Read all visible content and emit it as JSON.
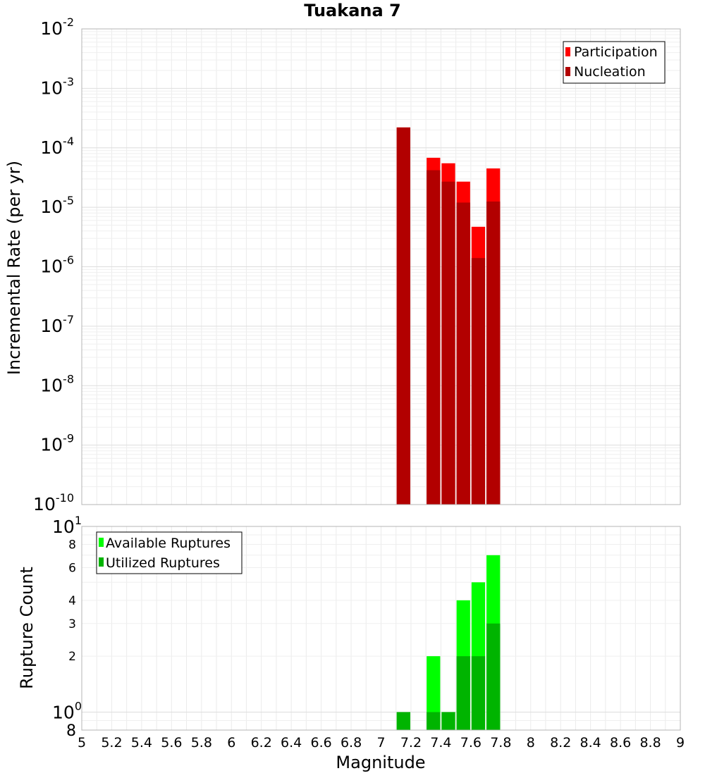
{
  "chart_data": [
    {
      "type": "bar",
      "title": "Tuakana 7",
      "xlabel": "",
      "ylabel": "Incremental Rate (per yr)",
      "xlim": [
        5,
        9
      ],
      "ylim": [
        1e-10,
        0.01
      ],
      "y_scale": "log",
      "grid": true,
      "legend_position": "top-right",
      "bin_width": 0.1,
      "x_ticks": [
        "5",
        "5.2",
        "5.4",
        "5.6",
        "5.8",
        "6",
        "6.2",
        "6.4",
        "6.6",
        "6.8",
        "7",
        "7.2",
        "7.4",
        "7.6",
        "7.8",
        "8",
        "8.2",
        "8.4",
        "8.6",
        "8.8",
        "9"
      ],
      "series": [
        {
          "name": "Participation",
          "color": "#ff0000",
          "x": [
            7.15,
            7.35,
            7.45,
            7.55,
            7.65,
            7.75
          ],
          "values": [
            0.00022,
            6.8e-05,
            5.5e-05,
            2.7e-05,
            4.7e-06,
            4.5e-05
          ]
        },
        {
          "name": "Nucleation",
          "color": "#b20000",
          "x": [
            7.15,
            7.35,
            7.45,
            7.55,
            7.65,
            7.75
          ],
          "values": [
            0.00022,
            4.2e-05,
            2.7e-05,
            1.2e-05,
            1.4e-06,
            1.25e-05
          ]
        }
      ]
    },
    {
      "type": "bar",
      "xlabel": "Magnitude",
      "ylabel": "Rupture Count",
      "xlim": [
        5,
        9
      ],
      "ylim": [
        0.8,
        10
      ],
      "y_scale": "log",
      "grid": true,
      "legend_position": "top-left",
      "bin_width": 0.1,
      "x_ticks": [
        "5",
        "5.2",
        "5.4",
        "5.6",
        "5.8",
        "6",
        "6.2",
        "6.4",
        "6.6",
        "6.8",
        "7",
        "7.2",
        "7.4",
        "7.6",
        "7.8",
        "8",
        "8.2",
        "8.4",
        "8.6",
        "8.8",
        "9"
      ],
      "series": [
        {
          "name": "Available Ruptures",
          "color": "#00ff00",
          "x": [
            7.15,
            7.35,
            7.45,
            7.55,
            7.65,
            7.75
          ],
          "values": [
            1,
            2,
            1,
            4,
            5,
            7
          ]
        },
        {
          "name": "Utilized Ruptures",
          "color": "#00b400",
          "x": [
            7.15,
            7.35,
            7.45,
            7.55,
            7.65,
            7.75
          ],
          "values": [
            1,
            1,
            1,
            2,
            2,
            3
          ]
        }
      ]
    }
  ]
}
